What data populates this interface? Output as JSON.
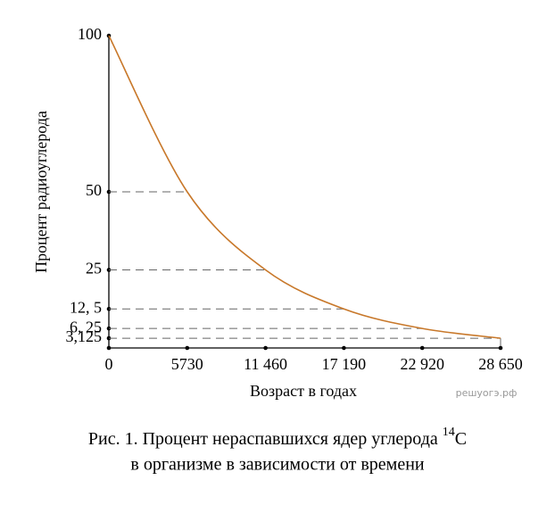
{
  "chart_data": {
    "type": "line",
    "x_label": "Возраст в годах",
    "y_label": "Процент радиоуглерода",
    "x": [
      0,
      5730,
      11460,
      17190,
      22920,
      28650
    ],
    "series": [
      {
        "color": "#c8782a",
        "values": [
          100,
          50,
          25,
          12.5,
          6.25,
          3.125
        ]
      }
    ],
    "xlim": [
      0,
      28650
    ],
    "ylim": [
      0,
      100
    ],
    "xticks": [
      0,
      5730,
      {
        "value": 11460,
        "label": "11 460"
      },
      {
        "value": 17190,
        "label": "17 190"
      },
      {
        "value": 22920,
        "label": "22 920"
      },
      {
        "value": 28650,
        "label": "28 650"
      }
    ],
    "yticks": [
      {
        "value": 3.125,
        "label": "3,125"
      },
      {
        "value": 6.25,
        "label": "6, 25"
      },
      {
        "value": 12.5,
        "label": "12, 5"
      },
      25,
      50,
      100
    ],
    "grid": true,
    "watermark": "решуогэ.рф",
    "caption": {
      "line1": "Рис. 1. Процент нераспавшихся ядер углерода ",
      "isotope_mass": "14",
      "isotope": "C",
      "line2": "в организме в зависимости от времени"
    }
  }
}
